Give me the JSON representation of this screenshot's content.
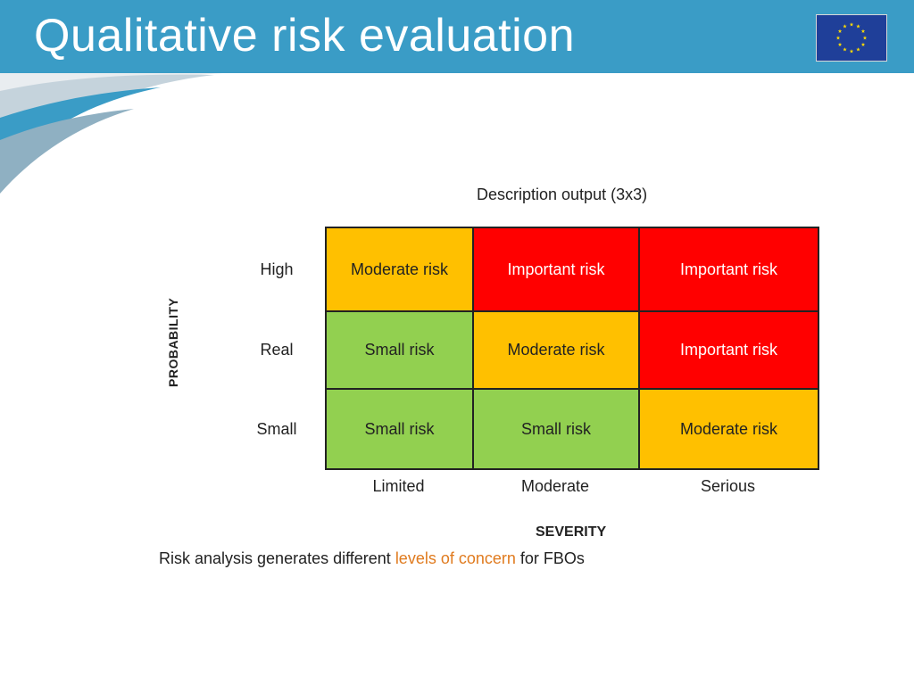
{
  "slide": {
    "title": "Qualitative risk evaluation",
    "flag_icon": "eu-flag-icon"
  },
  "matrix": {
    "caption": "Description output (3x3)",
    "y_axis_label": "PROBABILITY",
    "x_axis_label": "SEVERITY",
    "rows": [
      "High",
      "Real",
      "Small"
    ],
    "columns": [
      "Limited",
      "Moderate",
      "Serious"
    ],
    "cells": [
      [
        "Moderate risk",
        "Important risk",
        "Important risk"
      ],
      [
        "Small risk",
        "Moderate risk",
        "Important risk"
      ],
      [
        "Small risk",
        "Small risk",
        "Moderate risk"
      ]
    ],
    "colors": {
      "small": "#92d050",
      "moderate": "#ffc000",
      "important": "#ff0000"
    }
  },
  "footnote": {
    "before": "Risk analysis generates different ",
    "highlight": "levels of concern",
    "after": " for FBOs"
  },
  "theme": {
    "header_color": "#3a9cc6",
    "highlight_color": "#e07b1f"
  }
}
